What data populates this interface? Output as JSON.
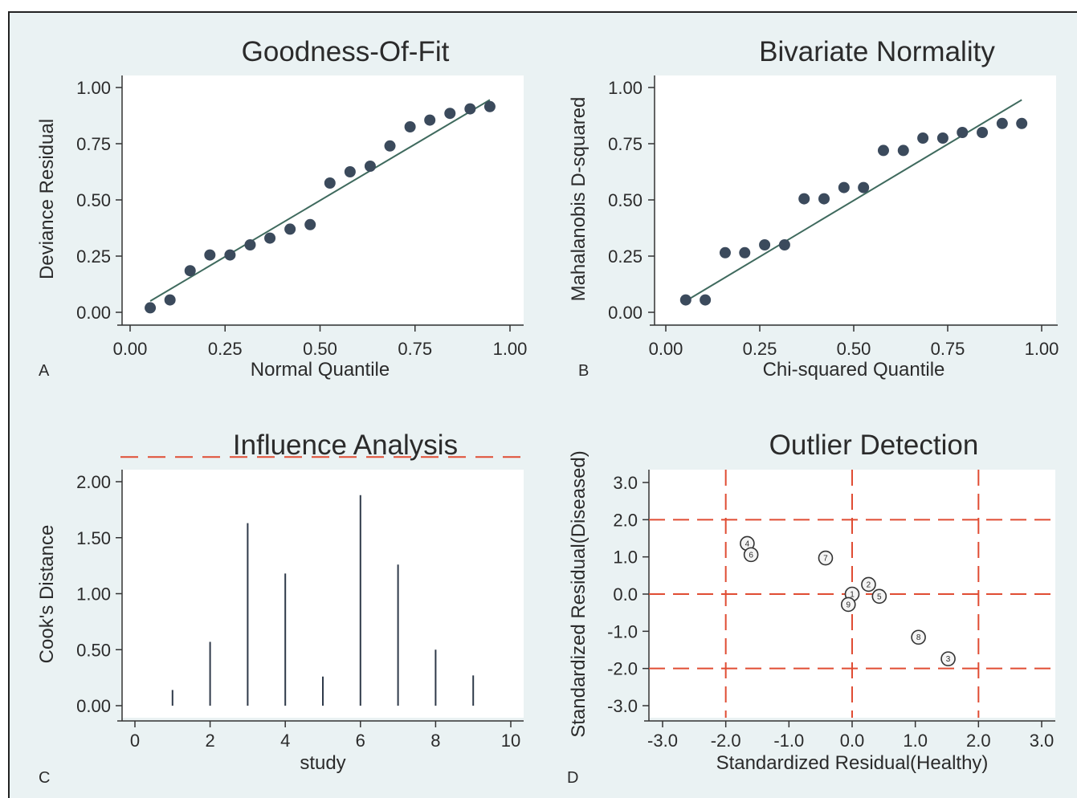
{
  "panels": [
    {
      "letter": "A",
      "chart_data": {
        "type": "scatter",
        "title": "Goodness-Of-Fit",
        "xlabel": "Normal Quantile",
        "ylabel": "Deviance Residual",
        "xlim": [
          0,
          1
        ],
        "ylim": [
          0,
          1
        ],
        "xticks": [
          "0.00",
          "0.25",
          "0.50",
          "0.75",
          "1.00"
        ],
        "yticks": [
          "0.00",
          "0.25",
          "0.50",
          "0.75",
          "1.00"
        ],
        "grid": false,
        "x": [
          0.053,
          0.105,
          0.158,
          0.21,
          0.263,
          0.316,
          0.368,
          0.421,
          0.474,
          0.526,
          0.579,
          0.632,
          0.684,
          0.737,
          0.789,
          0.842,
          0.895,
          0.947
        ],
        "y": [
          0.02,
          0.055,
          0.185,
          0.255,
          0.255,
          0.3,
          0.33,
          0.37,
          0.39,
          0.575,
          0.625,
          0.65,
          0.74,
          0.825,
          0.855,
          0.885,
          0.905,
          0.915
        ],
        "reference_line": [
          [
            0.053,
            0.05
          ],
          [
            0.947,
            0.945
          ]
        ]
      }
    },
    {
      "letter": "B",
      "chart_data": {
        "type": "scatter",
        "title": "Bivariate Normality",
        "xlabel": "Chi-squared Quantile",
        "ylabel": "Mahalanobis D-squared",
        "xlim": [
          0,
          1
        ],
        "ylim": [
          0,
          1
        ],
        "xticks": [
          "0.00",
          "0.25",
          "0.50",
          "0.75",
          "1.00"
        ],
        "yticks": [
          "0.00",
          "0.25",
          "0.50",
          "0.75",
          "1.00"
        ],
        "grid": false,
        "x": [
          0.053,
          0.105,
          0.158,
          0.21,
          0.263,
          0.316,
          0.368,
          0.421,
          0.474,
          0.526,
          0.579,
          0.632,
          0.684,
          0.737,
          0.789,
          0.842,
          0.895,
          0.947
        ],
        "y": [
          0.055,
          0.055,
          0.265,
          0.265,
          0.3,
          0.3,
          0.505,
          0.505,
          0.555,
          0.555,
          0.72,
          0.72,
          0.775,
          0.775,
          0.8,
          0.8,
          0.84,
          0.84
        ],
        "reference_line": [
          [
            0.053,
            0.05
          ],
          [
            0.947,
            0.945
          ]
        ]
      }
    },
    {
      "letter": "C",
      "chart_data": {
        "type": "bar",
        "title": "Influence Analysis",
        "xlabel": "study",
        "ylabel": "Cook's Distance",
        "xlim": [
          0,
          10
        ],
        "ylim": [
          0,
          2
        ],
        "xticks": [
          "0",
          "2",
          "4",
          "6",
          "8",
          "10"
        ],
        "yticks": [
          "0.00",
          "0.50",
          "1.00",
          "1.50",
          "2.00"
        ],
        "grid": false,
        "x": [
          1,
          2,
          3,
          4,
          5,
          6,
          7,
          8,
          9
        ],
        "y": [
          0.14,
          0.57,
          1.63,
          1.18,
          0.26,
          1.88,
          1.26,
          0.5,
          0.27
        ],
        "threshold_line": 2.22
      }
    },
    {
      "letter": "D",
      "chart_data": {
        "type": "scatter",
        "title": "Outlier Detection",
        "xlabel": "Standardized Residual(Healthy)",
        "ylabel": "Standardized Residual(Diseased)",
        "xlim": [
          -3,
          3
        ],
        "ylim": [
          -3,
          3
        ],
        "xticks": [
          "-3.0",
          "-2.0",
          "-1.0",
          "0.0",
          "1.0",
          "2.0",
          "3.0"
        ],
        "yticks": [
          "-3.0",
          "-2.0",
          "-1.0",
          "0.0",
          "1.0",
          "2.0",
          "3.0"
        ],
        "grid": false,
        "reference_lines_x": [
          -2,
          0,
          2
        ],
        "reference_lines_y": [
          -2,
          0,
          2
        ],
        "points": [
          {
            "label": "1",
            "x": 0.0,
            "y": 0.0
          },
          {
            "label": "2",
            "x": 0.26,
            "y": 0.26
          },
          {
            "label": "3",
            "x": 1.52,
            "y": -1.74
          },
          {
            "label": "4",
            "x": -1.66,
            "y": 1.36
          },
          {
            "label": "5",
            "x": 0.43,
            "y": -0.06
          },
          {
            "label": "6",
            "x": -1.6,
            "y": 1.06
          },
          {
            "label": "7",
            "x": -0.42,
            "y": 0.97
          },
          {
            "label": "8",
            "x": 1.05,
            "y": -1.16
          },
          {
            "label": "9",
            "x": -0.06,
            "y": -0.28
          }
        ]
      }
    }
  ]
}
